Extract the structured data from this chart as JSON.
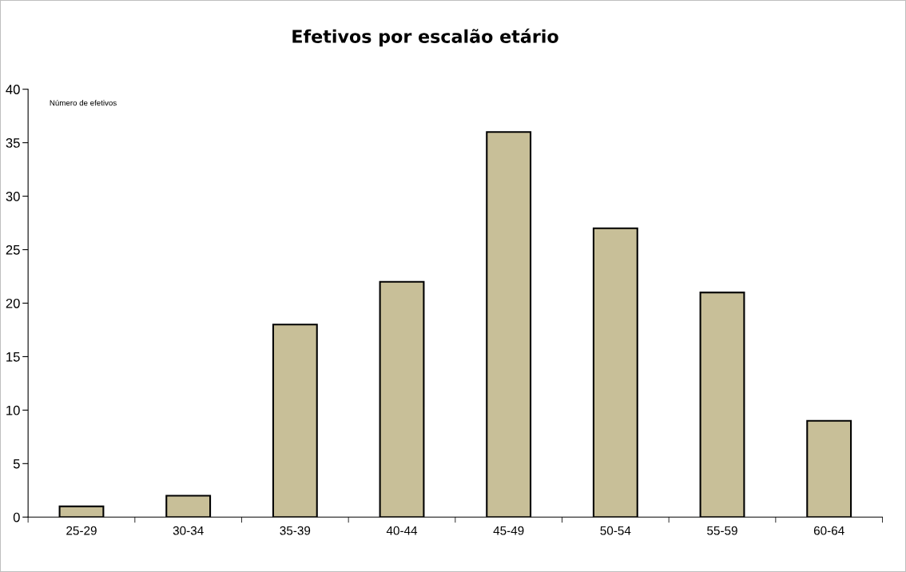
{
  "chart_data": {
    "type": "bar",
    "title": "Efetivos por escalão etário",
    "ylabel": "Número de efetivos",
    "categories": [
      "25-29",
      "30-34",
      "35-39",
      "40-44",
      "45-49",
      "50-54",
      "55-59",
      "60-64"
    ],
    "values": [
      1,
      2,
      18,
      22,
      36,
      27,
      21,
      9
    ],
    "color": "#c8bf98",
    "ylim": [
      0,
      40
    ],
    "yticks": [
      0,
      5,
      10,
      15,
      20,
      25,
      30,
      35,
      40
    ],
    "grid": false,
    "legend": false
  }
}
